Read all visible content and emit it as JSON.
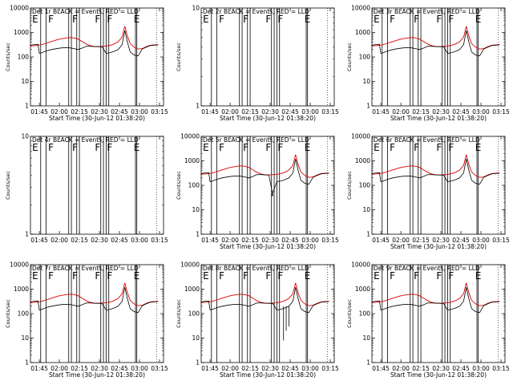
{
  "colors": {
    "events": "#000000",
    "lld": "#dd0000",
    "axes": "#000000"
  },
  "chart_data": [
    {
      "type": "line",
      "title": "Det 1r BLACK = Events, RED = LLD",
      "ylabel": "Counts/sec",
      "xlabel": "Start Time (30-Jun-12 01:38:20)",
      "yscale": "log",
      "ylim": [
        1,
        10000
      ],
      "yticks": [
        "1",
        "10",
        "100",
        "1000",
        "10000"
      ],
      "xticks": [
        "01:45",
        "02:00",
        "02:15",
        "02:30",
        "02:45",
        "03:00",
        "03:15"
      ],
      "events_profile": "normal",
      "markers": [
        "E",
        "F",
        "F",
        "F",
        "F",
        "E"
      ],
      "series": []
    },
    {
      "type": "line",
      "title": "Det 2r BLACK = Events, RED = LLD",
      "ylabel": "Counts/sec",
      "xlabel": "Start Time (30-Jun-12 01:38:20)",
      "yscale": "log",
      "ylim": [
        1,
        10
      ],
      "yticks": [
        "1",
        "10"
      ],
      "xticks": [
        "01:45",
        "02:00",
        "02:15",
        "02:30",
        "02:45",
        "03:00",
        "03:15"
      ],
      "events_profile": "none",
      "markers": [
        "E",
        "F",
        "F",
        "F",
        "F",
        "E"
      ],
      "series": []
    },
    {
      "type": "line",
      "title": "Det 3r BLACK = Events, RED = LLD",
      "ylabel": "Counts/sec",
      "xlabel": "Start Time (30-Jun-12 01:38:20)",
      "yscale": "log",
      "ylim": [
        1,
        10000
      ],
      "yticks": [
        "1",
        "10",
        "100",
        "1000",
        "10000"
      ],
      "xticks": [
        "01:45",
        "02:00",
        "02:15",
        "02:30",
        "02:45",
        "03:00",
        "03:15"
      ],
      "events_profile": "normal",
      "markers": [
        "E",
        "F",
        "F",
        "F",
        "F",
        "E"
      ],
      "series": []
    },
    {
      "type": "line",
      "title": "Det 4r BLACK = Events, RED = LLD",
      "ylabel": "Counts/sec",
      "xlabel": "",
      "yscale": "log",
      "ylim": [
        1,
        10
      ],
      "yticks": [
        "1",
        "10"
      ],
      "xticks": [
        "01:45",
        "02:00",
        "02:15",
        "02:30",
        "02:45",
        "03:00",
        "03:15"
      ],
      "events_profile": "none",
      "markers": [
        "E",
        "F",
        "F",
        "F",
        "F",
        "E"
      ],
      "series": []
    },
    {
      "type": "line",
      "title": "Det 5r BLACK = Events, RED = LLD",
      "ylabel": "Counts/sec",
      "xlabel": "Start Time (30-Jun-12 01:38:20)",
      "yscale": "log",
      "ylim": [
        1,
        10000
      ],
      "yticks": [
        "1",
        "10",
        "100",
        "1000",
        "10000"
      ],
      "xticks": [
        "01:45",
        "02:00",
        "02:15",
        "02:30",
        "02:45",
        "03:00",
        "03:15"
      ],
      "events_profile": "dip",
      "markers": [
        "E",
        "F",
        "F",
        "F",
        "F",
        "E"
      ],
      "series": []
    },
    {
      "type": "line",
      "title": "Det 6r BLACK = Events, RED = LLD",
      "ylabel": "Counts/sec",
      "xlabel": "Start Time (30-Jun-12 01:38:20)",
      "yscale": "log",
      "ylim": [
        1,
        10000
      ],
      "yticks": [
        "1",
        "10",
        "100",
        "1000",
        "10000"
      ],
      "xticks": [
        "01:45",
        "02:00",
        "02:15",
        "02:30",
        "02:45",
        "03:00",
        "03:15"
      ],
      "events_profile": "normal",
      "markers": [
        "E",
        "F",
        "F",
        "F",
        "F",
        "E"
      ],
      "series": []
    },
    {
      "type": "line",
      "title": "Det 7r BLACK = Events, RED = LLD",
      "ylabel": "Counts/sec",
      "xlabel": "Start Time (30-Jun-12 01:38:20)",
      "yscale": "log",
      "ylim": [
        1,
        10000
      ],
      "yticks": [
        "1",
        "10",
        "100",
        "1000",
        "10000"
      ],
      "xticks": [
        "01:45",
        "02:00",
        "02:15",
        "02:30",
        "02:45",
        "03:00",
        "03:15"
      ],
      "events_profile": "normal",
      "markers": [
        "E",
        "F",
        "F",
        "F",
        "F",
        "E"
      ],
      "series": []
    },
    {
      "type": "line",
      "title": "Det 8r BLACK = Events, RED = LLD",
      "ylabel": "Counts/sec",
      "xlabel": "Start Time (30-Jun-12 01:38:20)",
      "yscale": "log",
      "ylim": [
        1,
        10000
      ],
      "yticks": [
        "1",
        "10",
        "100",
        "1000",
        "10000"
      ],
      "xticks": [
        "01:45",
        "02:00",
        "02:15",
        "02:30",
        "02:45",
        "03:00",
        "03:15"
      ],
      "events_profile": "spiky",
      "markers": [
        "E",
        "F",
        "F",
        "F",
        "F",
        "E"
      ],
      "series": []
    },
    {
      "type": "line",
      "title": "Det 9r BLACK = Events, RED = LLD",
      "ylabel": "Counts/sec",
      "xlabel": "Start Time (30-Jun-12 01:38:20)",
      "yscale": "log",
      "ylim": [
        1,
        10000
      ],
      "yticks": [
        "1",
        "10",
        "100",
        "1000",
        "10000"
      ],
      "xticks": [
        "01:45",
        "02:00",
        "02:15",
        "02:30",
        "02:45",
        "03:00",
        "03:15"
      ],
      "events_profile": "normal",
      "markers": [
        "E",
        "F",
        "F",
        "F",
        "F",
        "E"
      ],
      "series": []
    }
  ],
  "shared": {
    "x_time_minutes_start": "01:38:20",
    "lld_values": [
      [
        "01:38",
        280
      ],
      [
        "01:41",
        290
      ],
      [
        "01:44",
        300
      ],
      [
        "01:47",
        320
      ],
      [
        "01:50",
        360
      ],
      [
        "01:53",
        410
      ],
      [
        "01:56",
        460
      ],
      [
        "01:59",
        520
      ],
      [
        "02:02",
        560
      ],
      [
        "02:05",
        600
      ],
      [
        "02:08",
        620
      ],
      [
        "02:11",
        600
      ],
      [
        "02:14",
        540
      ],
      [
        "02:17",
        430
      ],
      [
        "02:20",
        340
      ],
      [
        "02:23",
        290
      ],
      [
        "02:26",
        270
      ],
      [
        "02:29",
        265
      ],
      [
        "02:32",
        270
      ],
      [
        "02:35",
        280
      ],
      [
        "02:38",
        300
      ],
      [
        "02:41",
        340
      ],
      [
        "02:44",
        420
      ],
      [
        "02:47",
        650
      ],
      [
        "02:49",
        1800
      ],
      [
        "02:51",
        700
      ],
      [
        "02:53",
        350
      ],
      [
        "02:56",
        250
      ],
      [
        "02:59",
        210
      ],
      [
        "03:02",
        220
      ],
      [
        "03:05",
        260
      ],
      [
        "03:08",
        300
      ],
      [
        "03:11",
        310
      ],
      [
        "03:14",
        320
      ]
    ],
    "events_values": [
      [
        "01:38",
        300
      ],
      [
        "01:41",
        320
      ],
      [
        "01:44",
        330
      ],
      [
        "01:45",
        140
      ],
      [
        "01:47",
        150
      ],
      [
        "01:50",
        175
      ],
      [
        "01:53",
        195
      ],
      [
        "01:56",
        210
      ],
      [
        "01:59",
        225
      ],
      [
        "02:02",
        235
      ],
      [
        "02:05",
        240
      ],
      [
        "02:08",
        235
      ],
      [
        "02:11",
        220
      ],
      [
        "02:14",
        200
      ],
      [
        "02:17",
        230
      ],
      [
        "02:20",
        270
      ],
      [
        "02:23",
        275
      ],
      [
        "02:26",
        265
      ],
      [
        "02:29",
        262
      ],
      [
        "02:32",
        260
      ],
      [
        "02:35",
        140
      ],
      [
        "02:38",
        150
      ],
      [
        "02:41",
        170
      ],
      [
        "02:44",
        200
      ],
      [
        "02:47",
        320
      ],
      [
        "02:49",
        1200
      ],
      [
        "02:51",
        400
      ],
      [
        "02:53",
        160
      ],
      [
        "02:56",
        120
      ],
      [
        "02:59",
        110
      ],
      [
        "03:02",
        210
      ],
      [
        "03:05",
        250
      ],
      [
        "03:08",
        290
      ],
      [
        "03:11",
        300
      ],
      [
        "03:14",
        310
      ]
    ],
    "gap_intervals": [
      [
        "01:46",
        "01:50"
      ],
      [
        "02:07",
        "02:09"
      ],
      [
        "02:13",
        "02:15"
      ],
      [
        "02:31",
        "02:33"
      ],
      [
        "02:35",
        "02:37"
      ],
      [
        "02:57",
        "02:58"
      ]
    ]
  }
}
